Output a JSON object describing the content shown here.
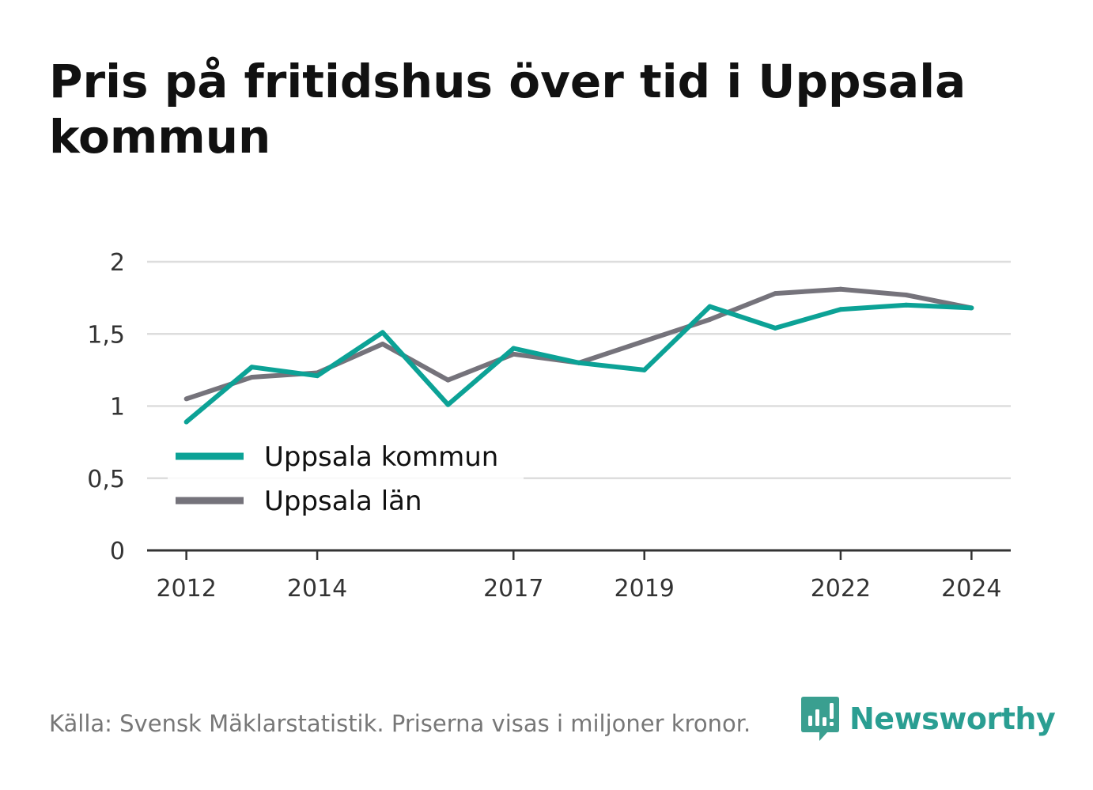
{
  "title": "Pris på fritidshus över tid i Uppsala kommun",
  "source": "Källa: Svensk Mäklarstatistik. Priserna visas i miljoner kronor.",
  "brand": "Newsworthy",
  "chart_data": {
    "type": "line",
    "title": "Pris på fritidshus över tid i Uppsala kommun",
    "x": [
      2012,
      2013,
      2014,
      2015,
      2016,
      2017,
      2018,
      2019,
      2020,
      2021,
      2022,
      2023,
      2024
    ],
    "x_ticks": [
      2012,
      2014,
      2017,
      2019,
      2022,
      2024
    ],
    "y_ticks": [
      {
        "value": 0,
        "label": "0"
      },
      {
        "value": 0.5,
        "label": "0,5"
      },
      {
        "value": 1,
        "label": "1"
      },
      {
        "value": 1.5,
        "label": "1,5"
      },
      {
        "value": 2,
        "label": "2"
      }
    ],
    "ylim": [
      0,
      2
    ],
    "xlim": [
      2011.4,
      2024.6
    ],
    "grid": true,
    "legend_position": "lower-left",
    "series": [
      {
        "name": "Uppsala kommun",
        "color": "#0ca296",
        "values": [
          0.89,
          1.27,
          1.21,
          1.51,
          1.01,
          1.4,
          1.3,
          1.25,
          1.69,
          1.54,
          1.67,
          1.7,
          1.68
        ]
      },
      {
        "name": "Uppsala län",
        "color": "#75737b",
        "values": [
          1.05,
          1.2,
          1.23,
          1.43,
          1.18,
          1.36,
          1.3,
          1.45,
          1.6,
          1.78,
          1.81,
          1.77,
          1.68
        ]
      }
    ]
  },
  "colors": {
    "grid": "#dddddd",
    "axis": "#333333",
    "tick_text": "#333333",
    "brand": "#2a9e92"
  }
}
